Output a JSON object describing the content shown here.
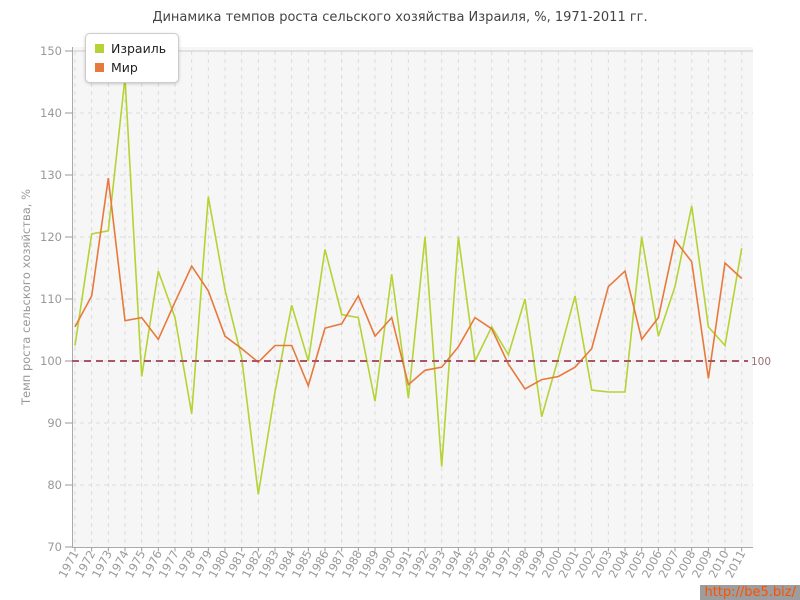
{
  "title": "Динамика темпов роста сельского хозяйства Израиля, %, 1971-2011 гг.",
  "watermark": "http://be5.biz/",
  "legend": {
    "items": [
      "Израиль",
      "Мир"
    ]
  },
  "chart_data": {
    "type": "line",
    "title": "Динамика темпов роста сельского хозяйства Израиля, %, 1971-2011 гг.",
    "xlabel": "",
    "ylabel": "Темп роста сельского хозяйства, %",
    "ylim": [
      70,
      150
    ],
    "yticks": [
      70,
      80,
      90,
      100,
      110,
      120,
      130,
      140,
      150
    ],
    "grid": "dashed",
    "legend_position": "top-left",
    "plot_background": "#f6f6f6",
    "reference_line": {
      "value": 100,
      "label": "100",
      "color": "#a85566"
    },
    "categories": [
      1971,
      1972,
      1973,
      1974,
      1975,
      1976,
      1977,
      1978,
      1979,
      1980,
      1981,
      1982,
      1983,
      1984,
      1985,
      1986,
      1987,
      1988,
      1989,
      1990,
      1991,
      1992,
      1993,
      1994,
      1995,
      1996,
      1997,
      1998,
      1999,
      2000,
      2001,
      2002,
      2003,
      2004,
      2005,
      2006,
      2007,
      2008,
      2009,
      2010,
      2011
    ],
    "series": [
      {
        "name": "Израиль",
        "color": "#b5d334",
        "values": [
          102.5,
          120.5,
          121,
          145.7,
          97.5,
          114.5,
          107,
          91.5,
          126.5,
          111.5,
          100.5,
          78.5,
          95,
          109,
          100,
          118,
          107.5,
          107,
          93.5,
          114,
          94,
          120,
          83,
          120,
          100,
          105.5,
          101,
          110,
          91,
          100.5,
          110.5,
          95.3,
          95,
          95,
          120,
          104,
          112,
          125,
          105.5,
          102.5,
          118.2
        ]
      },
      {
        "name": "Мир",
        "color": "#e8793c",
        "values": [
          105.5,
          110.5,
          129.5,
          106.5,
          107,
          103.5,
          109.5,
          115.3,
          111.3,
          104,
          102,
          99.8,
          102.5,
          102.5,
          96,
          105.3,
          106,
          110.5,
          104,
          107,
          96.2,
          98.5,
          99,
          102.3,
          107,
          105.2,
          99.5,
          95.5,
          97,
          97.5,
          99,
          102,
          112,
          114.5,
          103.5,
          107,
          119.5,
          116,
          97.2,
          115.8,
          113.3
        ]
      }
    ]
  }
}
